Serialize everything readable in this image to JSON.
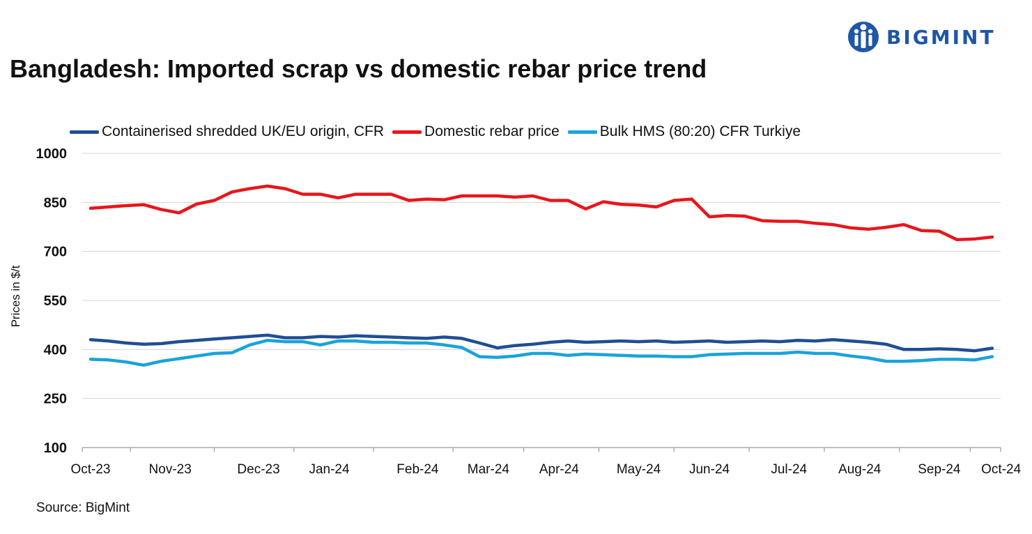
{
  "brand": {
    "name": "BIGMINT",
    "colors": {
      "primary": "#1F56A6"
    }
  },
  "source": "Source: BigMint",
  "chart_data": {
    "type": "line",
    "title": "Bangladesh: Imported scrap vs domestic rebar price trend",
    "xlabel": "",
    "ylabel": "Prices in $/t",
    "ylim": [
      100,
      1000
    ],
    "yticks": [
      1000,
      850,
      700,
      550,
      400,
      250,
      100
    ],
    "grid": true,
    "legend_position": "top",
    "x_tick_labels": [
      "Oct-23",
      "Nov-23",
      "Dec-23",
      "Jan-24",
      "Feb-24",
      "Mar-24",
      "Apr-24",
      "May-24",
      "Jun-24",
      "Jul-24",
      "Aug-24",
      "Sep-24",
      "Oct-24"
    ],
    "x_week_of_tick": [
      0,
      4.5,
      9.5,
      13.5,
      18.5,
      22.5,
      26.5,
      31,
      35,
      39.5,
      43.5,
      48,
      51.5
    ],
    "series": [
      {
        "name": "Containerised shredded UK/EU origin, CFR",
        "color": "#1F4E94",
        "values": [
          430,
          426,
          420,
          416,
          418,
          424,
          428,
          432,
          436,
          440,
          444,
          436,
          436,
          440,
          438,
          442,
          440,
          438,
          436,
          434,
          438,
          434,
          420,
          405,
          412,
          416,
          422,
          426,
          422,
          424,
          426,
          424,
          426,
          422,
          424,
          426,
          422,
          424,
          426,
          424,
          428,
          426,
          430,
          426,
          422,
          416,
          400,
          400,
          402,
          400,
          396,
          404
        ]
      },
      {
        "name": "Domestic rebar price",
        "color": "#E8161B",
        "values": [
          832,
          836,
          840,
          843,
          828,
          818,
          845,
          856,
          882,
          892,
          900,
          892,
          875,
          875,
          864,
          875,
          875,
          875,
          856,
          860,
          858,
          870,
          870,
          870,
          866,
          870,
          856,
          856,
          830,
          852,
          844,
          842,
          836,
          856,
          860,
          806,
          810,
          808,
          794,
          792,
          792,
          786,
          782,
          772,
          768,
          774,
          782,
          764,
          762,
          736,
          738,
          744
        ]
      },
      {
        "name": "Bulk HMS (80:20) CFR Turkiye",
        "color": "#1AA3DB",
        "values": [
          370,
          368,
          362,
          352,
          364,
          372,
          380,
          388,
          390,
          414,
          428,
          424,
          424,
          414,
          426,
          426,
          422,
          422,
          420,
          420,
          414,
          406,
          378,
          376,
          380,
          388,
          388,
          382,
          386,
          384,
          382,
          380,
          380,
          378,
          378,
          384,
          386,
          388,
          388,
          388,
          392,
          388,
          388,
          380,
          374,
          364,
          364,
          366,
          370,
          370,
          368,
          378
        ]
      }
    ]
  }
}
